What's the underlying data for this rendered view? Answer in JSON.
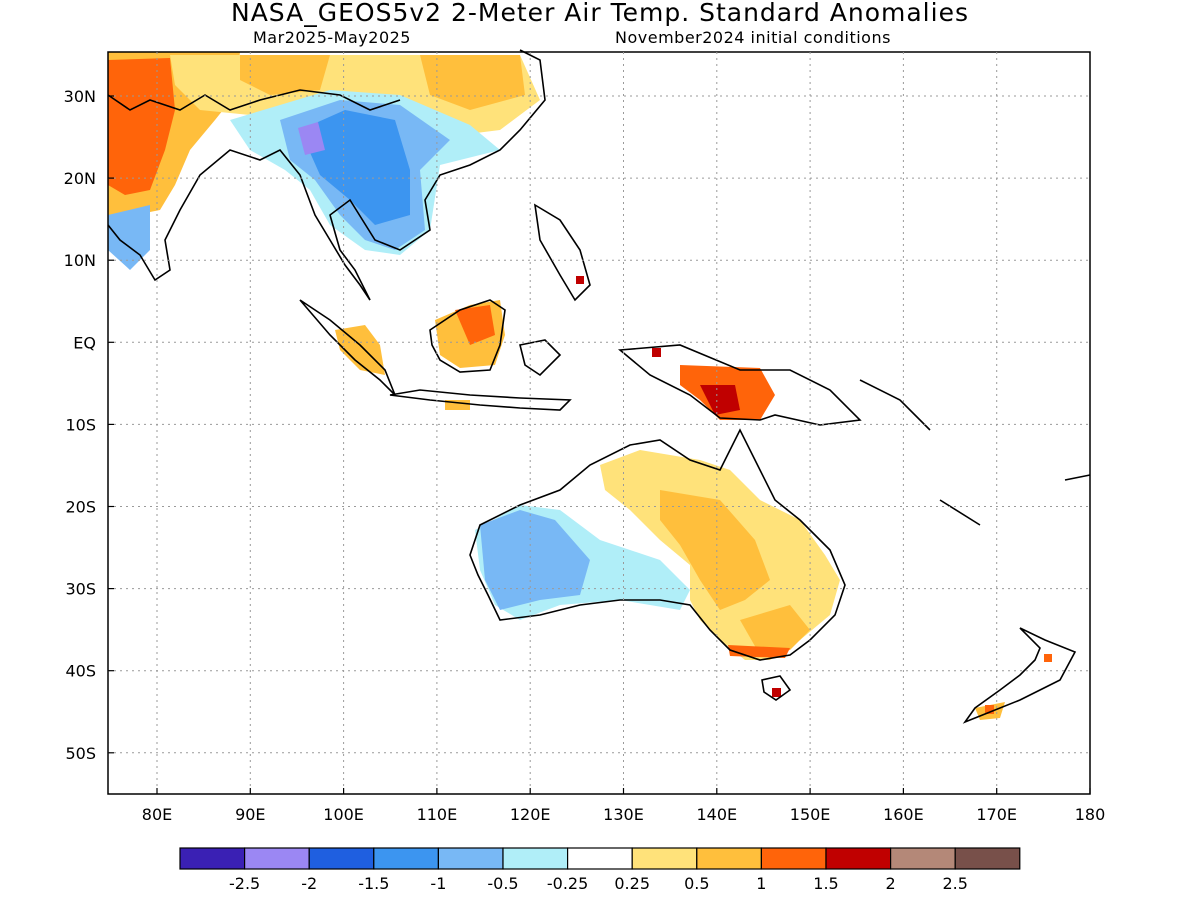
{
  "title": "NASA_GEOS5v2 2-Meter Air Temp. Standard Anomalies",
  "period": "Mar2025-May2025",
  "initial_conditions": "November2024 initial conditions",
  "lat_labels": [
    "30N",
    "20N",
    "10N",
    "EQ",
    "10S",
    "20S",
    "30S",
    "40S",
    "50S"
  ],
  "lon_labels": [
    "80E",
    "90E",
    "100E",
    "110E",
    "120E",
    "130E",
    "140E",
    "150E",
    "160E",
    "170E",
    "180"
  ],
  "colorbar": {
    "colors": [
      "#3a20b4",
      "#9b87f3",
      "#1f5fe0",
      "#3c95f0",
      "#78b8f5",
      "#b0eef8",
      "#ffffff",
      "#ffe27a",
      "#ffbf3c",
      "#ff640a",
      "#c00000",
      "#b48878",
      "#78504a"
    ],
    "labels": [
      "-2.5",
      "-2",
      "-1.5",
      "-1",
      "-0.5",
      "-0.25",
      "0.25",
      "0.5",
      "1",
      "1.5",
      "2",
      "2.5"
    ]
  }
}
